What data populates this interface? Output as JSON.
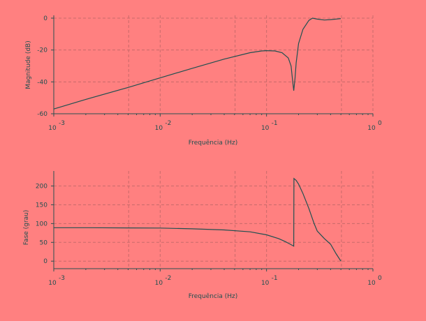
{
  "colors": {
    "background": "#ff8080",
    "axis": "#2a4f4f",
    "grid": "#c86a6a",
    "line": "#1f5050"
  },
  "chart_data": [
    {
      "type": "line",
      "title": "",
      "xlabel": "Frequência (Hz)",
      "ylabel": "Magnitude (dB)",
      "x_scale": "log",
      "xlim": [
        0.001,
        1
      ],
      "ylim": [
        -60,
        0
      ],
      "grid": true,
      "x_ticks": [
        {
          "value": 0.001,
          "base": "10",
          "exp": "-3"
        },
        {
          "value": 0.01,
          "base": "10",
          "exp": "-2"
        },
        {
          "value": 0.1,
          "base": "10",
          "exp": "-1"
        },
        {
          "value": 1,
          "base": "10",
          "exp": "0"
        }
      ],
      "y_ticks": [
        {
          "value": 0,
          "label": "0"
        },
        {
          "value": -20,
          "label": "-20"
        },
        {
          "value": -40,
          "label": "-40"
        },
        {
          "value": -60,
          "label": "-60"
        }
      ],
      "series": [
        {
          "x": [
            0.001,
            0.002,
            0.005,
            0.01,
            0.02,
            0.04,
            0.07,
            0.09,
            0.1,
            0.12,
            0.14,
            0.16,
            0.17,
            0.175,
            0.18,
            0.185,
            0.19,
            0.2,
            0.22,
            0.25,
            0.27,
            0.3,
            0.35,
            0.4,
            0.5
          ],
          "y": [
            -57,
            -51,
            -43.5,
            -37.5,
            -31.5,
            -25.7,
            -21.7,
            -20.6,
            -20.4,
            -20.6,
            -21.7,
            -25,
            -30,
            -38,
            -45.5,
            -38,
            -28,
            -16,
            -7,
            -1.4,
            0,
            -0.6,
            -1.2,
            -0.9,
            -0.3
          ]
        }
      ]
    },
    {
      "type": "line",
      "title": "",
      "xlabel": "Frequência (Hz)",
      "ylabel": "Fase (grau)",
      "x_scale": "log",
      "xlim": [
        0.001,
        1
      ],
      "ylim": [
        -20,
        240
      ],
      "grid": true,
      "x_ticks": [
        {
          "value": 0.001,
          "base": "10",
          "exp": "-3"
        },
        {
          "value": 0.01,
          "base": "10",
          "exp": "-2"
        },
        {
          "value": 0.1,
          "base": "10",
          "exp": "-1"
        },
        {
          "value": 1,
          "base": "10",
          "exp": "0"
        }
      ],
      "y_ticks": [
        {
          "value": 0,
          "label": "0"
        },
        {
          "value": 50,
          "label": "50"
        },
        {
          "value": 100,
          "label": "100"
        },
        {
          "value": 150,
          "label": "150"
        },
        {
          "value": 200,
          "label": "200"
        }
      ],
      "series": [
        {
          "x": [
            0.001,
            0.002,
            0.005,
            0.01,
            0.02,
            0.04,
            0.07,
            0.1,
            0.13,
            0.15,
            0.165,
            0.175,
            0.18,
            0.181,
            0.19,
            0.2,
            0.22,
            0.25,
            0.28,
            0.3,
            0.35,
            0.4,
            0.45,
            0.5
          ],
          "y": [
            89,
            89,
            88.5,
            88,
            86,
            83,
            78,
            70,
            60,
            52,
            46,
            42,
            40,
            220,
            215,
            205,
            180,
            140,
            100,
            80,
            60,
            45,
            20,
            0
          ]
        }
      ]
    }
  ]
}
